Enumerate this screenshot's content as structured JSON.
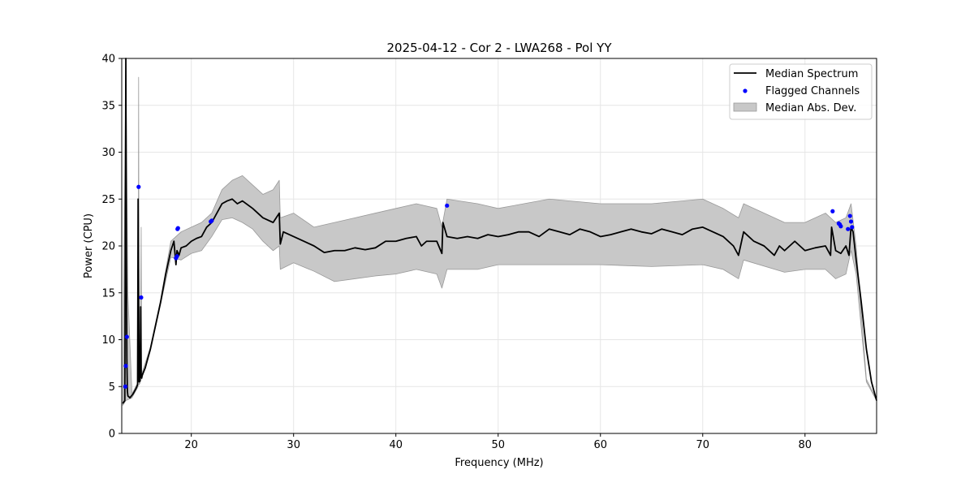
{
  "chart_data": {
    "type": "line",
    "title": "2025-04-12 - Cor 2 - LWA268 - Pol YY",
    "xlabel": "Frequency (MHz)",
    "ylabel": "Power (CPU)",
    "xlim": [
      13.2,
      87.0
    ],
    "ylim": [
      0,
      40
    ],
    "xticks": [
      20,
      30,
      40,
      50,
      60,
      70,
      80
    ],
    "yticks": [
      0,
      5,
      10,
      15,
      20,
      25,
      30,
      35,
      40
    ],
    "grid": true,
    "legend_position": "top-right",
    "legend": [
      "Median Spectrum",
      "Flagged Channels",
      "Median Abs. Dev."
    ],
    "colors": {
      "median": "#000000",
      "flagged": "#0000ff",
      "mad_fill": "#c8c8c8",
      "mad_edge": "#999999"
    },
    "series": [
      {
        "name": "Median Spectrum",
        "kind": "line",
        "x": [
          13.3,
          13.5,
          13.6,
          13.65,
          13.7,
          13.75,
          13.8,
          14.0,
          14.3,
          14.6,
          14.75,
          14.8,
          14.85,
          14.9,
          15.0,
          15.05,
          15.1,
          15.15,
          15.2,
          15.5,
          16.0,
          16.5,
          17.0,
          17.5,
          18.0,
          18.3,
          18.5,
          18.6,
          18.8,
          19.0,
          19.5,
          20.0,
          20.5,
          21.0,
          21.5,
          22.0,
          22.5,
          23.0,
          23.5,
          24.0,
          24.5,
          25.0,
          26.0,
          27.0,
          28.0,
          28.6,
          28.7,
          29.0,
          30.0,
          31.0,
          32.0,
          33.0,
          34.0,
          35.0,
          36.0,
          37.0,
          38.0,
          39.0,
          40.0,
          41.0,
          42.0,
          42.5,
          43.0,
          44.0,
          44.5,
          44.6,
          45.0,
          46.0,
          47.0,
          48.0,
          49.0,
          50.0,
          51.0,
          52.0,
          53.0,
          54.0,
          55.0,
          56.0,
          57.0,
          58.0,
          59.0,
          60.0,
          61.0,
          62.0,
          63.0,
          64.0,
          65.0,
          66.0,
          67.0,
          68.0,
          69.0,
          70.0,
          71.0,
          72.0,
          73.0,
          73.5,
          74.0,
          75.0,
          76.0,
          77.0,
          77.5,
          78.0,
          79.0,
          80.0,
          81.0,
          82.0,
          82.5,
          82.6,
          83.0,
          83.5,
          84.0,
          84.3,
          84.5,
          84.7,
          85.0,
          85.5,
          86.0,
          86.5,
          87.0
        ],
        "y": [
          3.2,
          3.5,
          40.0,
          20.0,
          8.0,
          4.5,
          4.0,
          3.8,
          4.2,
          4.8,
          5.2,
          25.0,
          15.0,
          5.5,
          5.6,
          13.5,
          6.0,
          5.9,
          6.2,
          7.0,
          9.0,
          11.5,
          14.0,
          17.0,
          19.5,
          20.5,
          18.0,
          19.5,
          19.0,
          19.8,
          20.0,
          20.5,
          20.8,
          21.0,
          22.0,
          22.5,
          23.5,
          24.5,
          24.8,
          25.0,
          24.5,
          24.8,
          24.0,
          23.0,
          22.5,
          23.5,
          20.2,
          21.5,
          21.0,
          20.5,
          20.0,
          19.3,
          19.5,
          19.5,
          19.8,
          19.6,
          19.8,
          20.5,
          20.5,
          20.8,
          21.0,
          20.0,
          20.5,
          20.5,
          19.2,
          22.5,
          21.0,
          20.8,
          21.0,
          20.8,
          21.2,
          21.0,
          21.2,
          21.5,
          21.5,
          21.0,
          21.8,
          21.5,
          21.2,
          21.8,
          21.5,
          21.0,
          21.2,
          21.5,
          21.8,
          21.5,
          21.3,
          21.8,
          21.5,
          21.2,
          21.8,
          22.0,
          21.5,
          21.0,
          20.0,
          19.0,
          21.5,
          20.5,
          20.0,
          19.0,
          20.0,
          19.5,
          20.5,
          19.5,
          19.8,
          20.0,
          19.0,
          22.0,
          19.5,
          19.2,
          20.0,
          19.0,
          22.0,
          21.5,
          18.5,
          14.0,
          9.0,
          5.5,
          3.5
        ]
      },
      {
        "name": "Median Abs. Dev.",
        "kind": "band",
        "x": [
          13.3,
          13.6,
          13.8,
          14.2,
          14.8,
          14.85,
          14.9,
          15.0,
          15.1,
          15.15,
          15.2,
          16.0,
          17.0,
          18.0,
          19.0,
          20.0,
          21.0,
          22.0,
          23.0,
          24.0,
          25.0,
          26.0,
          27.0,
          28.0,
          28.6,
          28.7,
          30.0,
          32.0,
          34.0,
          36.0,
          38.0,
          40.0,
          42.0,
          44.0,
          44.5,
          45.0,
          48.0,
          50.0,
          55.0,
          60.0,
          65.0,
          70.0,
          72.0,
          73.5,
          74.0,
          78.0,
          80.0,
          82.0,
          83.0,
          84.0,
          84.5,
          85.0,
          86.0,
          87.0
        ],
        "low": [
          3.0,
          3.5,
          3.6,
          3.8,
          5.0,
          12.0,
          5.2,
          5.4,
          12.5,
          5.8,
          6.0,
          8.8,
          13.8,
          18.8,
          18.5,
          19.2,
          19.5,
          21.0,
          22.8,
          23.0,
          22.5,
          21.8,
          20.5,
          19.5,
          20.0,
          17.5,
          18.2,
          17.3,
          16.2,
          16.5,
          16.8,
          17.0,
          17.5,
          17.0,
          15.5,
          17.5,
          17.5,
          18.0,
          18.0,
          18.0,
          17.8,
          18.0,
          17.5,
          16.5,
          18.5,
          17.2,
          17.5,
          17.5,
          16.5,
          17.0,
          19.5,
          17.0,
          5.5,
          3.5
        ],
        "high": [
          3.4,
          39.5,
          15.0,
          4.2,
          5.5,
          38.0,
          5.8,
          6.0,
          22.0,
          6.2,
          6.5,
          9.2,
          14.3,
          20.5,
          21.5,
          22.0,
          22.5,
          23.5,
          26.0,
          27.0,
          27.5,
          26.5,
          25.5,
          26.0,
          27.0,
          23.0,
          23.5,
          22.0,
          22.5,
          23.0,
          23.5,
          24.0,
          24.5,
          24.0,
          22.0,
          25.0,
          24.5,
          24.0,
          25.0,
          24.5,
          24.5,
          25.0,
          24.0,
          23.0,
          24.5,
          22.5,
          22.5,
          23.5,
          22.5,
          23.0,
          24.5,
          20.0,
          5.8,
          3.6
        ]
      },
      {
        "name": "Flagged Channels",
        "kind": "scatter",
        "x": [
          13.55,
          13.6,
          13.7,
          14.85,
          15.1,
          18.5,
          18.6,
          18.65,
          18.7,
          21.9,
          22.0,
          45.0,
          82.7,
          83.3,
          83.4,
          83.5,
          84.2,
          84.4,
          84.5,
          84.6
        ],
        "y": [
          5.0,
          7.2,
          10.3,
          26.3,
          14.5,
          18.7,
          18.9,
          21.8,
          21.9,
          22.6,
          22.7,
          24.3,
          23.7,
          22.4,
          22.3,
          22.1,
          21.8,
          23.2,
          22.6,
          22.0
        ]
      }
    ]
  }
}
